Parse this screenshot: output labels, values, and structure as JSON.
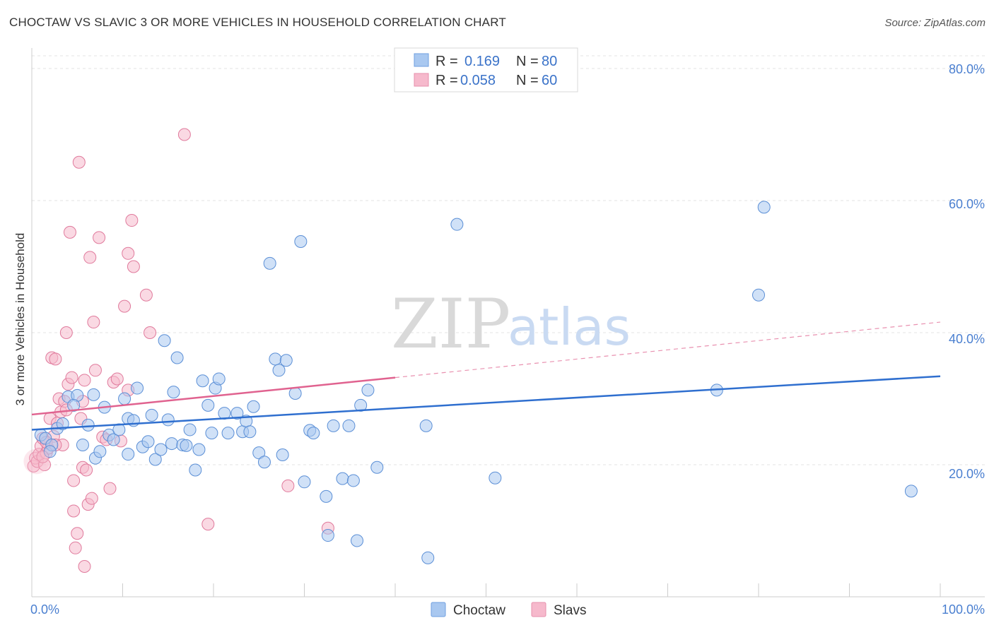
{
  "title": "CHOCTAW VS SLAVIC 3 OR MORE VEHICLES IN HOUSEHOLD CORRELATION CHART",
  "source": "Source: ZipAtlas.com",
  "watermark": {
    "zip": "ZIP",
    "atlas": "atlas"
  },
  "legend": {
    "rows": [
      {
        "r_label": "R = ",
        "r_value": "0.169",
        "n_label": "N = ",
        "n_value": "80",
        "color": "#a9c8f0"
      },
      {
        "r_label": "R = ",
        "r_value": "0.058",
        "n_label": "N = ",
        "n_value": "60",
        "color": "#f6b9cc"
      }
    ]
  },
  "chart_data": {
    "type": "scatter",
    "title": "CHOCTAW VS SLAVIC 3 OR MORE VEHICLES IN HOUSEHOLD CORRELATION CHART",
    "xlabel": "",
    "ylabel": "3 or more Vehicles in Household",
    "xlim": [
      0,
      100
    ],
    "ylim": [
      0,
      80
    ],
    "x_tick_labels": [
      "0.0%",
      "100.0%"
    ],
    "y_ticks": [
      20,
      40,
      60,
      80
    ],
    "y_tick_labels": [
      "20.0%",
      "40.0%",
      "60.0%",
      "80.0%"
    ],
    "grid": true,
    "series": [
      {
        "name": "Choctaw",
        "color": "#a9c8f0",
        "stroke": "#5b8fd6",
        "trend": {
          "x0": 0,
          "y0": 25.3,
          "x1": 100,
          "y1": 33.4,
          "color": "#2f6fcf",
          "dashed_from": null
        },
        "points": [
          [
            1.0,
            24.5
          ],
          [
            1.5,
            24.0
          ],
          [
            2.2,
            23.0
          ],
          [
            2.8,
            25.5
          ],
          [
            3.4,
            26.2
          ],
          [
            4.0,
            30.3
          ],
          [
            5.0,
            30.5
          ],
          [
            5.6,
            23.0
          ],
          [
            6.2,
            26.0
          ],
          [
            7.0,
            21.0
          ],
          [
            7.5,
            22.0
          ],
          [
            8.0,
            28.7
          ],
          [
            8.5,
            24.5
          ],
          [
            9.0,
            23.8
          ],
          [
            9.6,
            25.3
          ],
          [
            10.2,
            30.0
          ],
          [
            10.6,
            27.0
          ],
          [
            11.2,
            26.7
          ],
          [
            11.6,
            31.6
          ],
          [
            12.2,
            22.7
          ],
          [
            12.8,
            23.5
          ],
          [
            13.2,
            27.5
          ],
          [
            13.6,
            20.8
          ],
          [
            14.2,
            22.3
          ],
          [
            14.6,
            38.8
          ],
          [
            15.0,
            26.8
          ],
          [
            15.4,
            23.2
          ],
          [
            15.6,
            31.0
          ],
          [
            16.0,
            36.2
          ],
          [
            16.6,
            23.0
          ],
          [
            17.0,
            22.9
          ],
          [
            17.4,
            25.3
          ],
          [
            18.0,
            19.2
          ],
          [
            18.4,
            22.3
          ],
          [
            18.8,
            32.7
          ],
          [
            19.4,
            29.0
          ],
          [
            19.8,
            24.8
          ],
          [
            20.2,
            31.6
          ],
          [
            20.6,
            33.0
          ],
          [
            21.2,
            27.8
          ],
          [
            21.6,
            24.8
          ],
          [
            22.6,
            27.8
          ],
          [
            23.2,
            25.0
          ],
          [
            23.6,
            26.6
          ],
          [
            24.0,
            25.0
          ],
          [
            24.4,
            28.8
          ],
          [
            25.0,
            21.8
          ],
          [
            25.6,
            20.4
          ],
          [
            26.2,
            50.5
          ],
          [
            26.8,
            36.0
          ],
          [
            27.2,
            34.3
          ],
          [
            27.6,
            21.5
          ],
          [
            28.0,
            35.8
          ],
          [
            29.0,
            30.8
          ],
          [
            29.6,
            53.8
          ],
          [
            30.0,
            17.4
          ],
          [
            30.6,
            25.2
          ],
          [
            31.0,
            24.8
          ],
          [
            32.4,
            15.2
          ],
          [
            32.6,
            9.3
          ],
          [
            33.2,
            25.9
          ],
          [
            34.2,
            17.9
          ],
          [
            34.9,
            25.9
          ],
          [
            35.4,
            17.6
          ],
          [
            35.8,
            8.5
          ],
          [
            36.2,
            29.0
          ],
          [
            37.0,
            31.3
          ],
          [
            38.0,
            19.6
          ],
          [
            43.4,
            25.9
          ],
          [
            43.6,
            5.9
          ],
          [
            46.8,
            56.4
          ],
          [
            51.0,
            18.0
          ],
          [
            75.4,
            31.3
          ],
          [
            80.0,
            45.7
          ],
          [
            80.6,
            59.0
          ],
          [
            96.8,
            16.0
          ],
          [
            10.6,
            21.6
          ],
          [
            6.8,
            30.6
          ],
          [
            4.6,
            29.0
          ],
          [
            2.0,
            22.0
          ]
        ]
      },
      {
        "name": "Slavs",
        "color": "#f6b9cc",
        "stroke": "#e07a9c",
        "trend": {
          "x0": 0,
          "y0": 27.6,
          "x1": 100,
          "y1": 41.6,
          "color": "#e0628f",
          "dashed_from": 40
        },
        "points": [
          [
            0.2,
            19.8
          ],
          [
            0.4,
            21.0
          ],
          [
            0.6,
            20.5
          ],
          [
            0.8,
            21.6
          ],
          [
            1.0,
            22.8
          ],
          [
            1.2,
            24.0
          ],
          [
            1.4,
            20.0
          ],
          [
            1.6,
            21.8
          ],
          [
            1.8,
            22.5
          ],
          [
            2.0,
            27.0
          ],
          [
            2.2,
            36.2
          ],
          [
            2.4,
            24.3
          ],
          [
            2.6,
            36.0
          ],
          [
            2.8,
            26.3
          ],
          [
            3.0,
            30.0
          ],
          [
            3.2,
            28.0
          ],
          [
            3.4,
            23.0
          ],
          [
            3.6,
            29.6
          ],
          [
            3.8,
            28.3
          ],
          [
            4.0,
            32.2
          ],
          [
            4.2,
            55.2
          ],
          [
            4.4,
            33.2
          ],
          [
            4.6,
            13.0
          ],
          [
            4.8,
            7.4
          ],
          [
            5.0,
            9.6
          ],
          [
            5.2,
            65.8
          ],
          [
            5.4,
            27.0
          ],
          [
            5.6,
            19.6
          ],
          [
            5.8,
            32.8
          ],
          [
            6.0,
            19.2
          ],
          [
            6.2,
            14.0
          ],
          [
            6.4,
            51.4
          ],
          [
            6.6,
            14.9
          ],
          [
            6.8,
            41.6
          ],
          [
            7.0,
            34.3
          ],
          [
            7.4,
            54.4
          ],
          [
            7.8,
            24.2
          ],
          [
            8.2,
            23.8
          ],
          [
            8.6,
            16.4
          ],
          [
            9.0,
            32.5
          ],
          [
            9.4,
            33.0
          ],
          [
            9.8,
            23.6
          ],
          [
            10.2,
            44.0
          ],
          [
            10.6,
            52.0
          ],
          [
            11.0,
            57.0
          ],
          [
            11.2,
            50.0
          ],
          [
            12.6,
            45.7
          ],
          [
            13.0,
            40.0
          ],
          [
            16.8,
            70.0
          ],
          [
            19.4,
            11.0
          ],
          [
            28.2,
            16.8
          ],
          [
            32.6,
            10.4
          ],
          [
            3.8,
            40.0
          ],
          [
            5.6,
            29.6
          ],
          [
            1.6,
            23.4
          ],
          [
            2.6,
            23.0
          ],
          [
            4.6,
            17.6
          ],
          [
            10.6,
            31.3
          ],
          [
            1.2,
            21.2
          ],
          [
            5.8,
            4.6
          ]
        ]
      }
    ]
  },
  "bottom_legend": [
    {
      "label": "Choctaw",
      "color": "#a9c8f0"
    },
    {
      "label": "Slavs",
      "color": "#f6b9cc"
    }
  ]
}
